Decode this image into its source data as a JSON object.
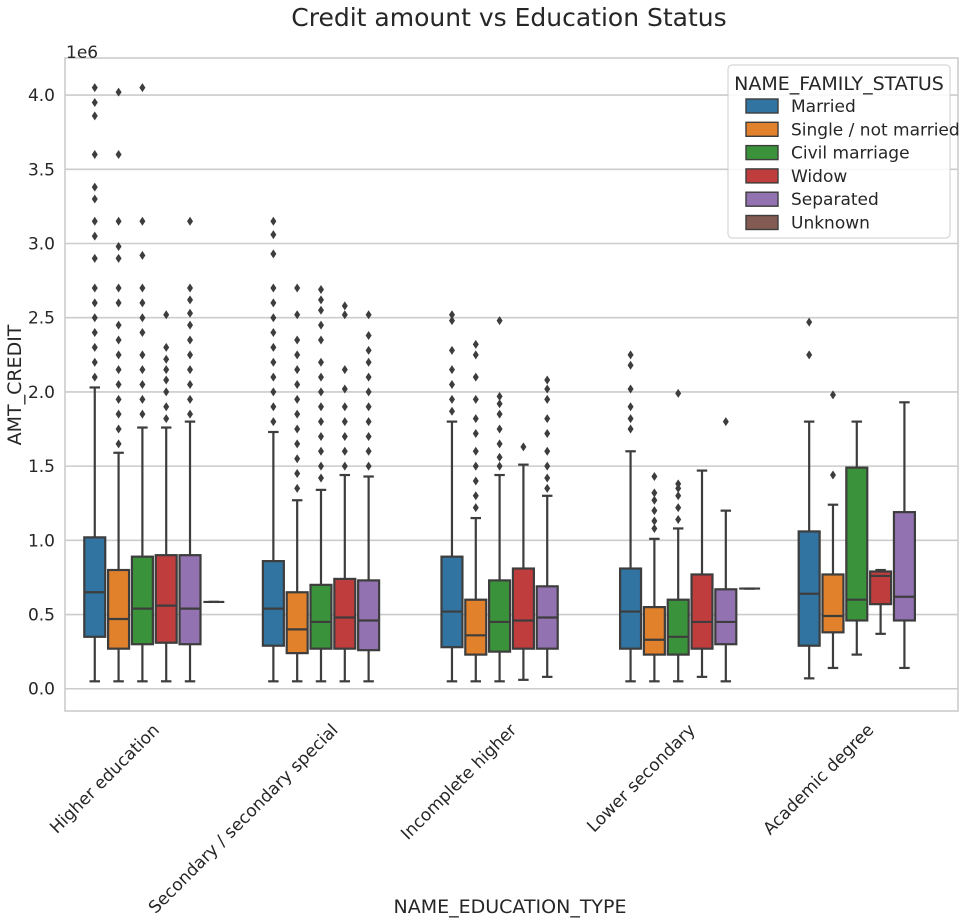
{
  "chart_data": {
    "type": "box",
    "title": "Credit amount vs Education Status",
    "xlabel": "NAME_EDUCATION_TYPE",
    "ylabel": "AMT_CREDIT",
    "y_offset_label": "1e6",
    "ylim": [
      -0.15,
      4.25
    ],
    "yticks": [
      "0.0",
      "0.5",
      "1.0",
      "1.5",
      "2.0",
      "2.5",
      "3.0",
      "3.5",
      "4.0"
    ],
    "grid": true,
    "legend_position": "top-right",
    "legend_title": "NAME_FAMILY_STATUS",
    "categories": [
      "Higher education",
      "Secondary / secondary special",
      "Incomplete higher",
      "Lower secondary",
      "Academic degree"
    ],
    "series": [
      {
        "name": "Married",
        "color": "#3274a1",
        "boxes": [
          {
            "whislo": 0.05,
            "q1": 0.35,
            "median": 0.65,
            "q3": 1.02,
            "whishi": 2.03,
            "fliers": [
              2.1,
              2.2,
              2.3,
              2.4,
              2.5,
              2.6,
              2.7,
              2.9,
              3.05,
              3.15,
              3.3,
              3.38,
              3.6,
              3.86,
              3.95,
              4.05
            ]
          },
          {
            "whislo": 0.05,
            "q1": 0.29,
            "median": 0.54,
            "q3": 0.86,
            "whishi": 1.73,
            "fliers": [
              1.8,
              1.9,
              2.0,
              2.1,
              2.2,
              2.3,
              2.4,
              2.5,
              2.6,
              2.7,
              2.93,
              3.06,
              3.15
            ]
          },
          {
            "whislo": 0.05,
            "q1": 0.28,
            "median": 0.52,
            "q3": 0.89,
            "whishi": 1.8,
            "fliers": [
              1.87,
              1.95,
              2.05,
              2.15,
              2.28,
              2.48,
              2.52
            ]
          },
          {
            "whislo": 0.05,
            "q1": 0.27,
            "median": 0.52,
            "q3": 0.81,
            "whishi": 1.6,
            "fliers": [
              1.75,
              1.82,
              1.9,
              2.02,
              2.18,
              2.25
            ]
          },
          {
            "whislo": 0.07,
            "q1": 0.29,
            "median": 0.64,
            "q3": 1.06,
            "whishi": 1.8,
            "fliers": [
              2.25,
              2.47
            ]
          }
        ]
      },
      {
        "name": "Single / not married",
        "color": "#e1812c",
        "boxes": [
          {
            "whislo": 0.05,
            "q1": 0.27,
            "median": 0.47,
            "q3": 0.8,
            "whishi": 1.59,
            "fliers": [
              1.65,
              1.75,
              1.85,
              1.95,
              2.05,
              2.15,
              2.25,
              2.35,
              2.45,
              2.6,
              2.7,
              2.9,
              2.98,
              3.15,
              3.6,
              4.02
            ]
          },
          {
            "whislo": 0.05,
            "q1": 0.24,
            "median": 0.4,
            "q3": 0.65,
            "whishi": 1.27,
            "fliers": [
              1.35,
              1.45,
              1.55,
              1.65,
              1.75,
              1.85,
              1.95,
              2.05,
              2.15,
              2.25,
              2.35,
              2.52,
              2.7
            ]
          },
          {
            "whislo": 0.05,
            "q1": 0.23,
            "median": 0.36,
            "q3": 0.6,
            "whishi": 1.15,
            "fliers": [
              1.22,
              1.3,
              1.4,
              1.5,
              1.6,
              1.72,
              1.82,
              1.95,
              2.1,
              2.25,
              2.32
            ]
          },
          {
            "whislo": 0.05,
            "q1": 0.23,
            "median": 0.33,
            "q3": 0.55,
            "whishi": 1.01,
            "fliers": [
              1.08,
              1.13,
              1.2,
              1.27,
              1.32,
              1.43
            ]
          },
          {
            "whislo": 0.14,
            "q1": 0.38,
            "median": 0.49,
            "q3": 0.77,
            "whishi": 1.24,
            "fliers": [
              1.44,
              1.98
            ]
          }
        ]
      },
      {
        "name": "Civil marriage",
        "color": "#3a923a",
        "boxes": [
          {
            "whislo": 0.05,
            "q1": 0.3,
            "median": 0.54,
            "q3": 0.89,
            "whishi": 1.76,
            "fliers": [
              1.85,
              1.95,
              2.05,
              2.15,
              2.25,
              2.4,
              2.5,
              2.6,
              2.7,
              2.92,
              3.15,
              4.05
            ]
          },
          {
            "whislo": 0.05,
            "q1": 0.27,
            "median": 0.45,
            "q3": 0.7,
            "whishi": 1.34,
            "fliers": [
              1.42,
              1.5,
              1.6,
              1.7,
              1.8,
              1.9,
              2.0,
              2.1,
              2.2,
              2.35,
              2.45,
              2.55,
              2.62,
              2.69
            ]
          },
          {
            "whislo": 0.05,
            "q1": 0.25,
            "median": 0.45,
            "q3": 0.73,
            "whishi": 1.44,
            "fliers": [
              1.5,
              1.56,
              1.65,
              1.75,
              1.85,
              1.92,
              1.97,
              2.48
            ]
          },
          {
            "whislo": 0.05,
            "q1": 0.23,
            "median": 0.35,
            "q3": 0.6,
            "whishi": 1.08,
            "fliers": [
              1.14,
              1.22,
              1.3,
              1.35,
              1.38,
              1.99
            ]
          },
          {
            "whislo": 0.23,
            "q1": 0.46,
            "median": 0.6,
            "q3": 1.49,
            "whishi": 1.8,
            "fliers": []
          }
        ]
      },
      {
        "name": "Widow",
        "color": "#c03d3e",
        "boxes": [
          {
            "whislo": 0.05,
            "q1": 0.31,
            "median": 0.56,
            "q3": 0.9,
            "whishi": 1.76,
            "fliers": [
              1.82,
              1.9,
              2.0,
              2.08,
              2.15,
              2.22,
              2.3,
              2.52
            ]
          },
          {
            "whislo": 0.05,
            "q1": 0.27,
            "median": 0.48,
            "q3": 0.74,
            "whishi": 1.44,
            "fliers": [
              1.5,
              1.6,
              1.7,
              1.8,
              1.9,
              2.02,
              2.15,
              2.52,
              2.58
            ]
          },
          {
            "whislo": 0.06,
            "q1": 0.27,
            "median": 0.46,
            "q3": 0.81,
            "whishi": 1.51,
            "fliers": [
              1.63
            ]
          },
          {
            "whislo": 0.08,
            "q1": 0.27,
            "median": 0.45,
            "q3": 0.77,
            "whishi": 1.47,
            "fliers": []
          },
          {
            "whislo": 0.37,
            "q1": 0.57,
            "median": 0.76,
            "q3": 0.79,
            "whishi": 0.8,
            "fliers": []
          }
        ]
      },
      {
        "name": "Separated",
        "color": "#9372b2",
        "boxes": [
          {
            "whislo": 0.05,
            "q1": 0.3,
            "median": 0.54,
            "q3": 0.9,
            "whishi": 1.8,
            "fliers": [
              1.85,
              1.95,
              2.05,
              2.15,
              2.25,
              2.35,
              2.45,
              2.53,
              2.62,
              2.7,
              3.15
            ]
          },
          {
            "whislo": 0.05,
            "q1": 0.26,
            "median": 0.46,
            "q3": 0.73,
            "whishi": 1.43,
            "fliers": [
              1.5,
              1.6,
              1.7,
              1.8,
              1.9,
              2.0,
              2.1,
              2.2,
              2.28,
              2.38,
              2.52
            ]
          },
          {
            "whislo": 0.08,
            "q1": 0.27,
            "median": 0.48,
            "q3": 0.69,
            "whishi": 1.3,
            "fliers": [
              1.35,
              1.42,
              1.5,
              1.6,
              1.72,
              1.82,
              1.95,
              2.02,
              2.08
            ]
          },
          {
            "whislo": 0.05,
            "q1": 0.3,
            "median": 0.45,
            "q3": 0.67,
            "whishi": 1.2,
            "fliers": [
              1.8
            ]
          },
          {
            "whislo": 0.14,
            "q1": 0.46,
            "median": 0.62,
            "q3": 1.19,
            "whishi": 1.93,
            "fliers": []
          }
        ]
      },
      {
        "name": "Unknown",
        "color": "#845b53",
        "boxes": [
          {
            "whislo": 0.585,
            "q1": 0.585,
            "median": 0.585,
            "q3": 0.585,
            "whishi": 0.585,
            "fliers": []
          },
          null,
          null,
          {
            "whislo": 0.675,
            "q1": 0.675,
            "median": 0.675,
            "q3": 0.675,
            "whishi": 0.675,
            "fliers": []
          },
          null
        ]
      }
    ]
  }
}
